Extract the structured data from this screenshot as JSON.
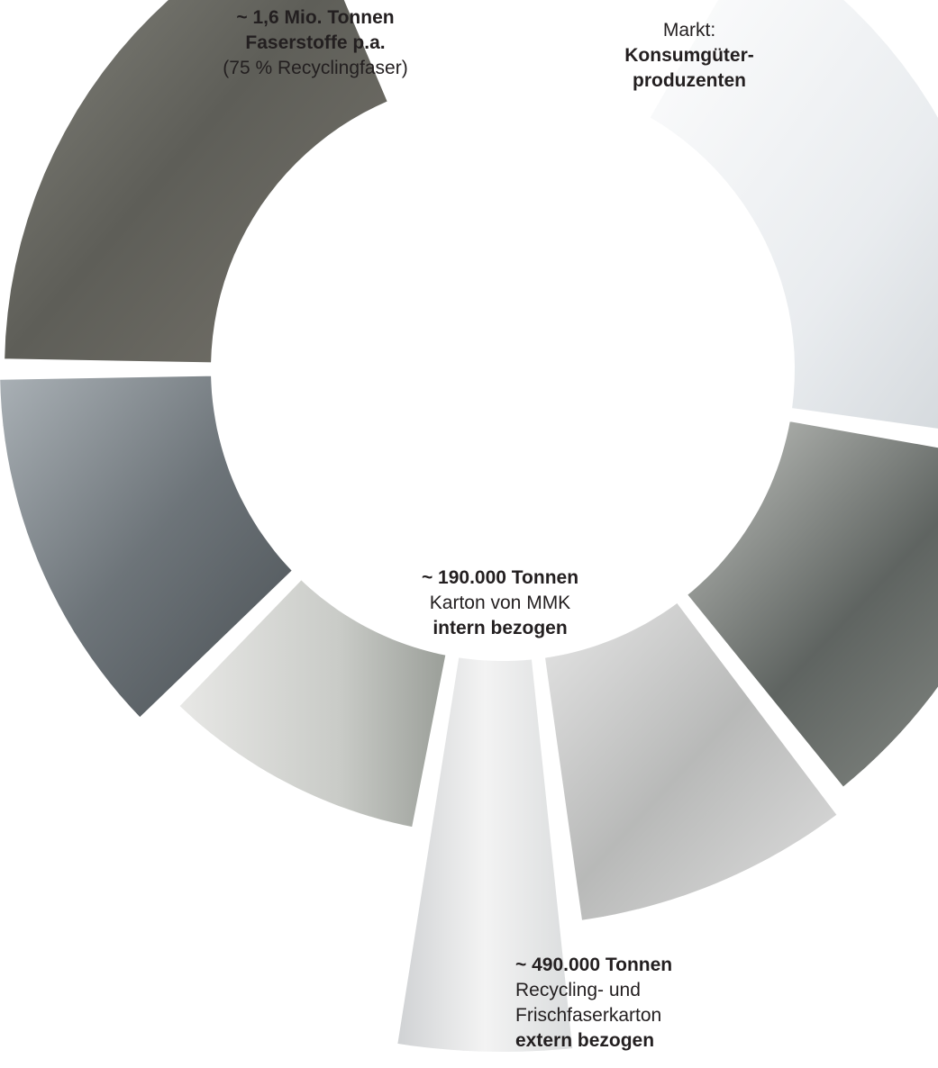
{
  "labels": {
    "fiber": {
      "line1": "~ 1,6 Mio. Tonnen",
      "line2": "Faserstoffe p.a.",
      "line3": "(75 % Recyclingfaser)"
    },
    "market": {
      "line1": "Markt:",
      "line2": "Konsumgüter-",
      "line3": "produzenten"
    },
    "internal": {
      "line1": "~ 190.000 Tonnen",
      "line2": "Karton von MMK",
      "line3": "intern bezogen"
    },
    "external": {
      "line1": "~ 490.000 Tonnen",
      "line2": "Recycling- und",
      "line3": "Frischfaserkarton",
      "line4": "extern bezogen"
    }
  }
}
